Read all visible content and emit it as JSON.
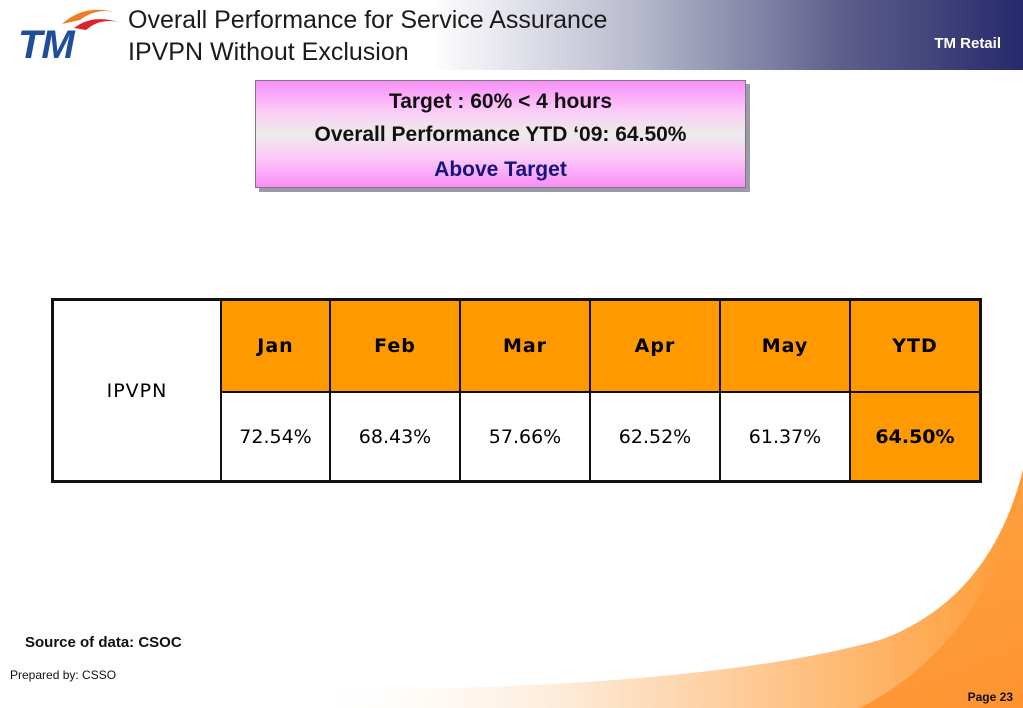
{
  "header": {
    "title_line1": "Overall Performance for Service Assurance",
    "title_line2": "IPVPN Without Exclusion",
    "brand_label": "TM Retail",
    "logo_text": "TM"
  },
  "target_box": {
    "line1": "Target : 60% < 4 hours",
    "line2": "Overall Performance YTD ‘09: 64.50%",
    "line3": "Above Target"
  },
  "table": {
    "row_label": "IPVPN",
    "columns": [
      "Jan",
      "Feb",
      "Mar",
      "Apr",
      "May",
      "YTD"
    ],
    "values": [
      "72.54%",
      "68.43%",
      "57.66%",
      "62.52%",
      "61.37%",
      "64.50%"
    ]
  },
  "footer": {
    "source": "Source of data: CSOC",
    "prepared_by": "Prepared by: CSSO",
    "page": "Page 23"
  },
  "colors": {
    "accent_orange": "#ff9900",
    "header_navy": "#262a6b",
    "logo_blue": "#1f4e9a",
    "highlight_text": "#15157d"
  }
}
